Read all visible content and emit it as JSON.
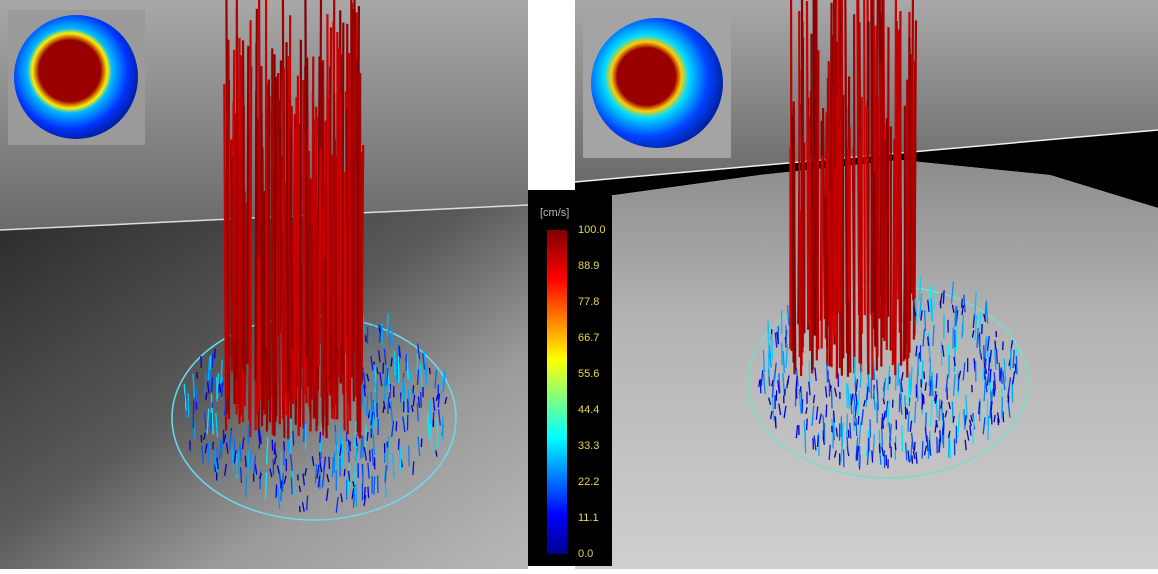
{
  "colorbar": {
    "unit": "[cm/s]",
    "labels": [
      "100.0",
      "88.9",
      "77.8",
      "66.7",
      "55.6",
      "44.4",
      "33.3",
      "22.2",
      "11.1",
      "0.0"
    ]
  }
}
